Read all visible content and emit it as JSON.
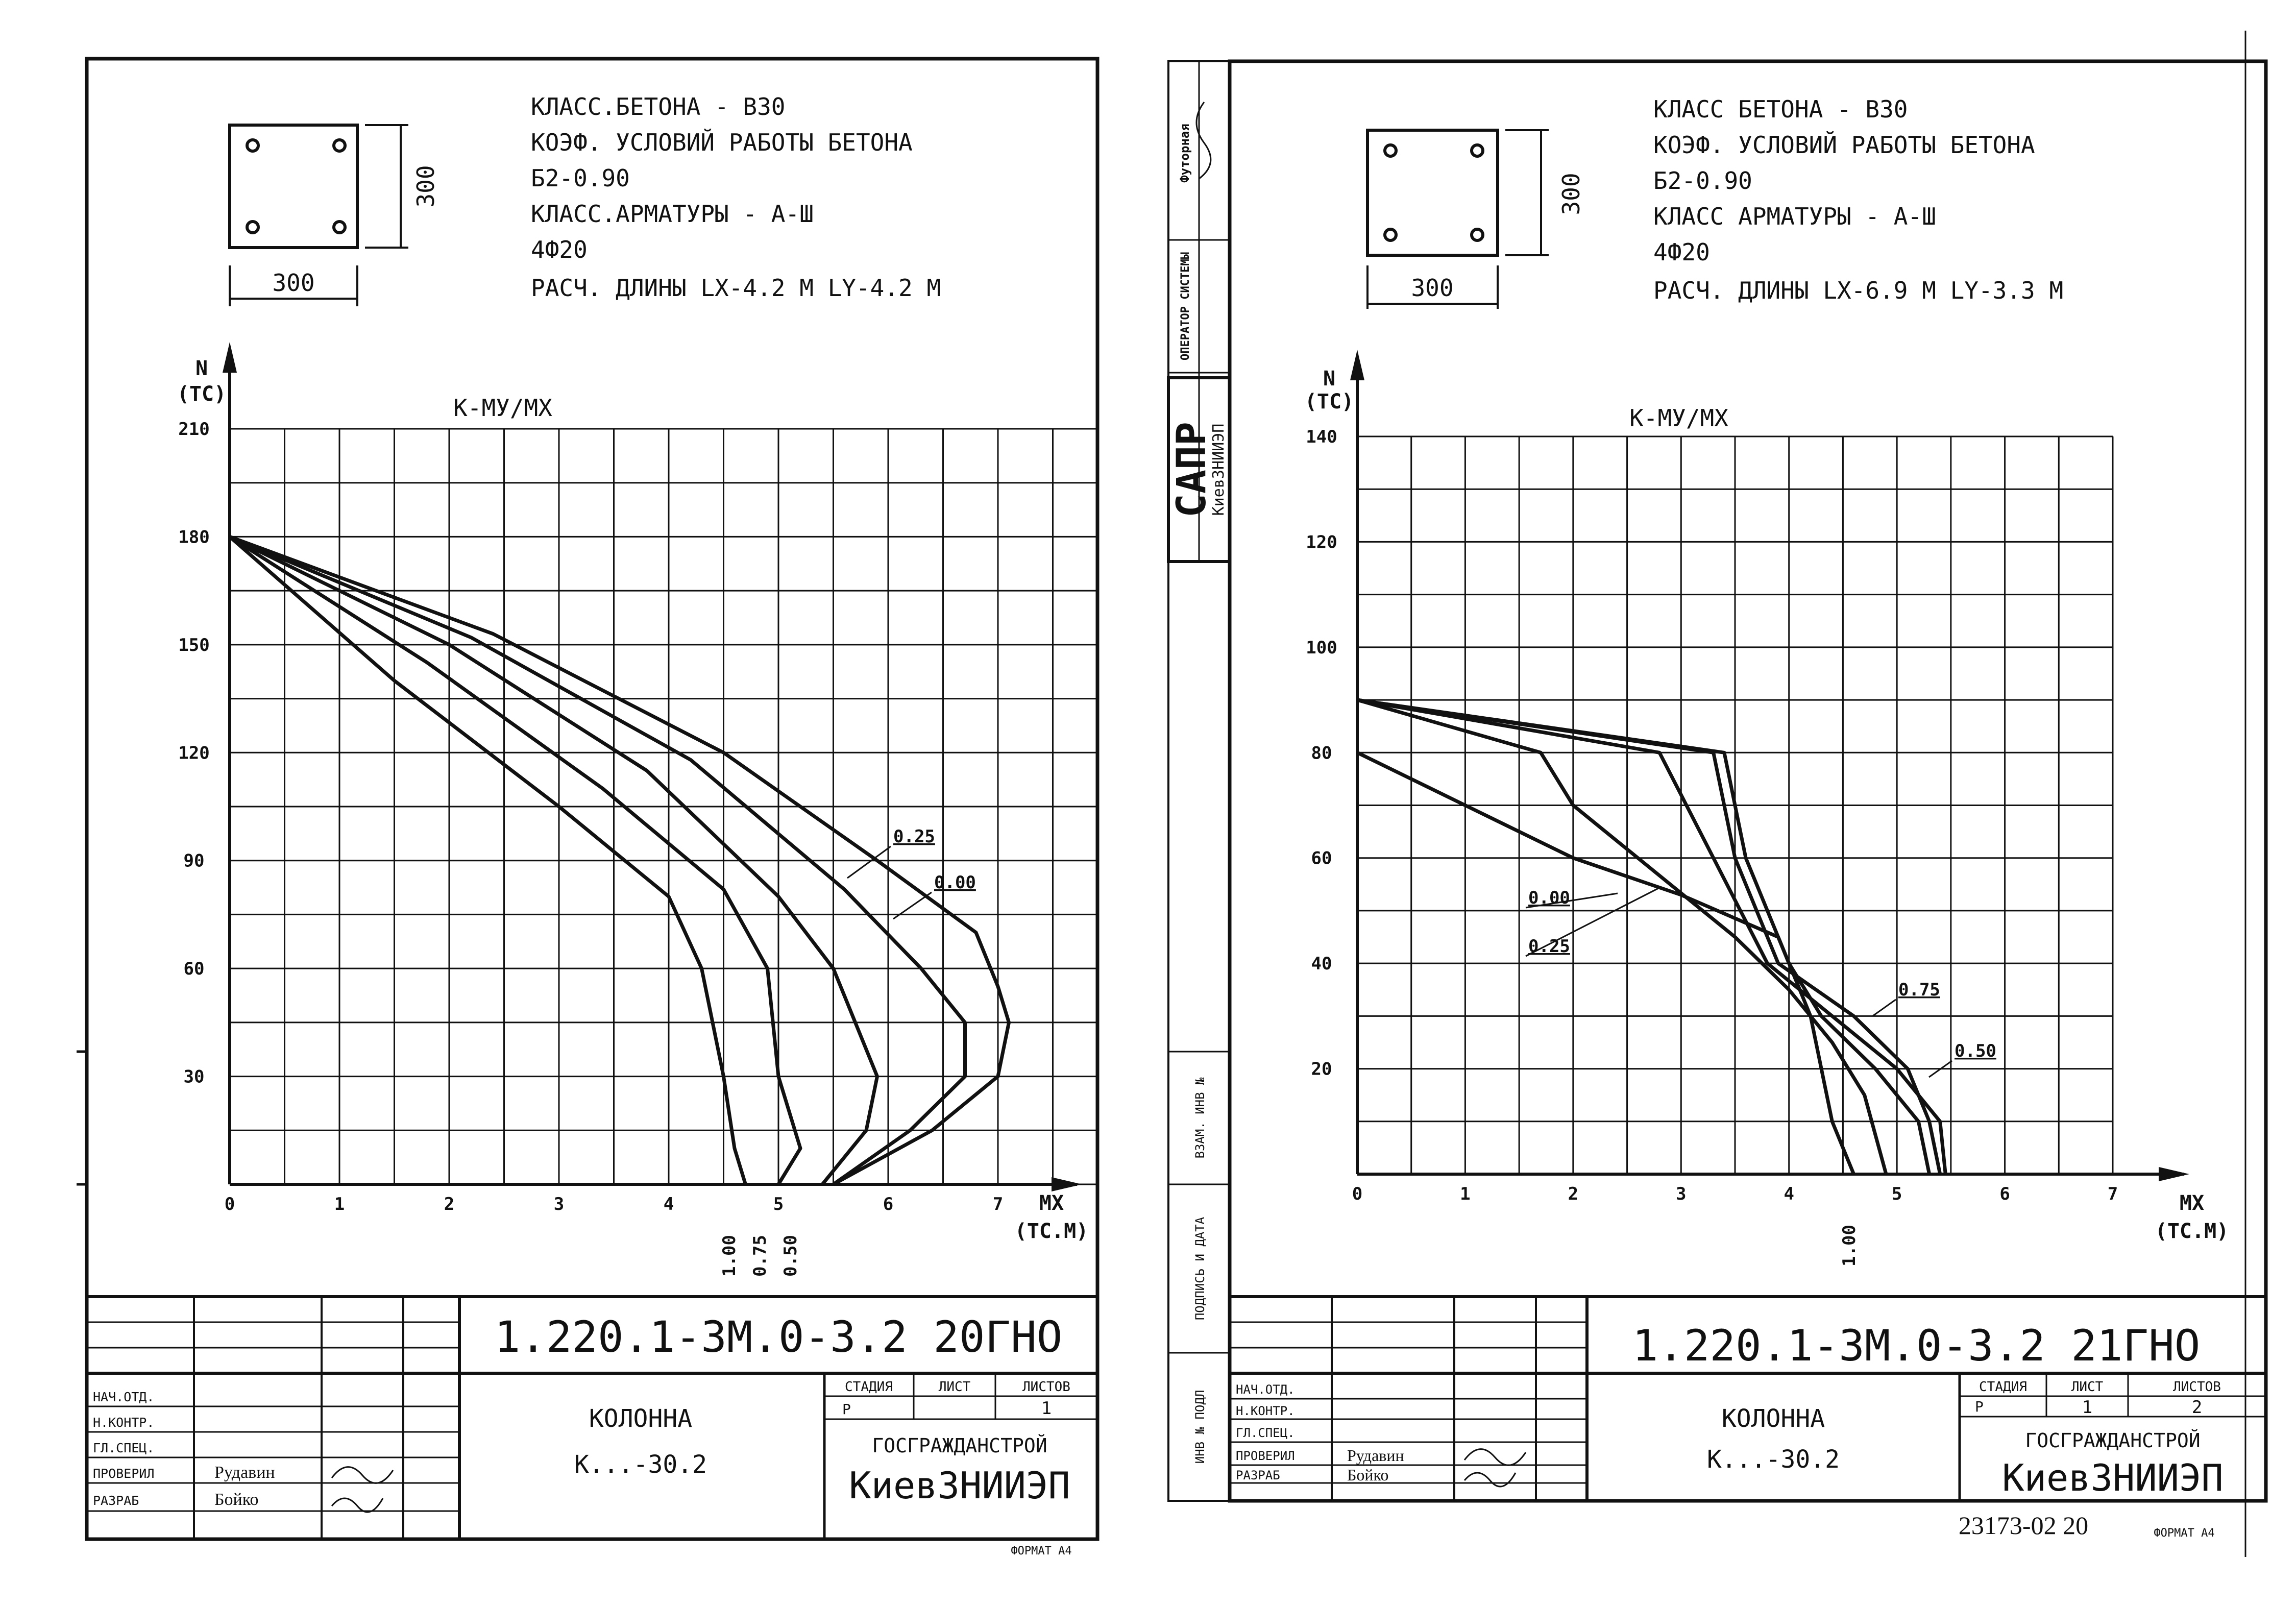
{
  "sheets": [
    {
      "params": [
        "КЛАСС.БЕТОНА - В30",
        "КОЭФ. УСЛОВИЙ РАБОТЫ БЕТОНА",
        "Б2-0.90",
        "КЛАСС.АРМАТУРЫ - А-Ш",
        "4Ф20",
        "РАСЧ. ДЛИНЫ  LX-4.2 М  LY-4.2 М"
      ],
      "section": {
        "width_label": "300",
        "height_label": "300"
      },
      "y_axis": {
        "label": "N",
        "unit": "(ТС)"
      },
      "x_axis": {
        "label": "МХ",
        "unit": "(ТС.М)"
      },
      "curve_family_label": "К-МУ/МХ",
      "title_block": {
        "code": "1.220.1-3М.0-3.2 20ГНО",
        "name": "КОЛОННА",
        "mark": "К...-30.2",
        "stage_header": "СТАДИЯ",
        "sheet_header": "ЛИСТ",
        "sheets_header": "ЛИСТОВ",
        "stage": "Р",
        "sheet": "",
        "sheets": "1",
        "org1": "ГОСГРАЖДАНСТРОЙ",
        "org2": "КиевЗНИИЭП",
        "roles": [
          "НАЧ.ОТД.",
          "Н.КОНТР.",
          "ГЛ.СПЕЦ.",
          "ПРОВЕРИЛ",
          "РАЗРАБ"
        ],
        "names": [
          "",
          "",
          "",
          "Рудавин",
          "Бойко"
        ],
        "format": "ФОРМАТ А4",
        "inventory": ""
      }
    },
    {
      "params": [
        "КЛАСС БЕТОНА - В30",
        "КОЭФ. УСЛОВИЙ РАБОТЫ БЕТОНА",
        "Б2-0.90",
        "КЛАСС АРМАТУРЫ - А-Ш",
        "4Ф20",
        "РАСЧ. ДЛИНЫ  LX-6.9 М  LY-3.3 М"
      ],
      "section": {
        "width_label": "300",
        "height_label": "300"
      },
      "y_axis": {
        "label": "N",
        "unit": "(ТС)"
      },
      "x_axis": {
        "label": "МХ",
        "unit": "(ТС.М)"
      },
      "curve_family_label": "К-МУ/МХ",
      "title_block": {
        "code": "1.220.1-3М.0-3.2 21ГНО",
        "name": "КОЛОННА",
        "mark": "К...-30.2",
        "stage_header": "СТАДИЯ",
        "sheet_header": "ЛИСТ",
        "sheets_header": "ЛИСТОВ",
        "stage": "Р",
        "sheet": "1",
        "sheets": "2",
        "org1": "ГОСГРАЖДАНСТРОЙ",
        "org2": "КиевЗНИИЭП",
        "roles": [
          "НАЧ.ОТД.",
          "Н.КОНТР.",
          "ГЛ.СПЕЦ.",
          "ПРОВЕРИЛ",
          "РАЗРАБ"
        ],
        "names": [
          "",
          "",
          "",
          "Рудавин",
          "Бойко"
        ],
        "format": "ФОРМАТ А4",
        "inventory": "23173-02 20"
      },
      "side_stamp": {
        "labels": [
          "Футорная",
          "ОПЕРАТОР СИСТЕМЫ",
          "САПР",
          "КиевЗНИИЭП",
          "ВЗАМ. ИНВ №",
          "ПОДПИСЬ И ДАТА",
          "ИНВ № ПОДЛ"
        ]
      }
    }
  ],
  "chart_data": [
    {
      "type": "line",
      "xlabel": "МХ (ТС.М)",
      "ylabel": "N (ТС)",
      "xlim": [
        0,
        8
      ],
      "ylim": [
        0,
        210
      ],
      "x_ticks": [
        0,
        1,
        2,
        3,
        4,
        5,
        6,
        7
      ],
      "y_ticks": [
        30,
        60,
        90,
        120,
        150,
        180,
        210
      ],
      "grid": true,
      "series": [
        {
          "name": "1.00",
          "points": [
            [
              0,
              180
            ],
            [
              1.5,
              140
            ],
            [
              3,
              105
            ],
            [
              4,
              80
            ],
            [
              4.3,
              60
            ],
            [
              4.5,
              30
            ],
            [
              4.6,
              10
            ],
            [
              4.7,
              0
            ]
          ]
        },
        {
          "name": "0.75",
          "points": [
            [
              0,
              180
            ],
            [
              1.8,
              145
            ],
            [
              3.4,
              110
            ],
            [
              4.5,
              82
            ],
            [
              4.9,
              60
            ],
            [
              5.0,
              30
            ],
            [
              5.2,
              10
            ],
            [
              5.0,
              0
            ]
          ]
        },
        {
          "name": "0.50",
          "points": [
            [
              0,
              180
            ],
            [
              2.0,
              150
            ],
            [
              3.8,
              115
            ],
            [
              5.0,
              80
            ],
            [
              5.5,
              60
            ],
            [
              5.9,
              30
            ],
            [
              5.8,
              15
            ],
            [
              5.4,
              0
            ]
          ]
        },
        {
          "name": "0.25",
          "points": [
            [
              0,
              180
            ],
            [
              2.2,
              152
            ],
            [
              4.2,
              118
            ],
            [
              5.6,
              82
            ],
            [
              6.3,
              60
            ],
            [
              6.7,
              45
            ],
            [
              6.7,
              30
            ],
            [
              6.2,
              15
            ],
            [
              5.5,
              0
            ]
          ]
        },
        {
          "name": "0.00",
          "points": [
            [
              0,
              180
            ],
            [
              2.4,
              153
            ],
            [
              4.5,
              120
            ],
            [
              5.9,
              90
            ],
            [
              6.8,
              70
            ],
            [
              7.0,
              55
            ],
            [
              7.1,
              45
            ],
            [
              7.0,
              30
            ],
            [
              6.4,
              15
            ],
            [
              5.5,
              0
            ]
          ]
        }
      ],
      "curve_labels": [
        {
          "text": "0.25",
          "position": "upper-right"
        },
        {
          "text": "0.00",
          "position": "upper-right"
        },
        {
          "text": "1.00",
          "position": "below-axis"
        },
        {
          "text": "0.75",
          "position": "below-axis"
        },
        {
          "text": "0.50",
          "position": "below-axis"
        }
      ]
    },
    {
      "type": "line",
      "xlabel": "МХ (ТС.М)",
      "ylabel": "N (ТС)",
      "xlim": [
        0,
        7
      ],
      "ylim": [
        0,
        140
      ],
      "x_ticks": [
        0,
        1,
        2,
        3,
        4,
        5,
        6,
        7
      ],
      "y_ticks": [
        20,
        40,
        60,
        80,
        100,
        120,
        140
      ],
      "grid": true,
      "series": [
        {
          "name": "0.00",
          "points": [
            [
              0,
              90
            ],
            [
              3.4,
              80
            ],
            [
              3.6,
              60
            ],
            [
              4.0,
              40
            ],
            [
              4.3,
              30
            ],
            [
              4.8,
              20
            ],
            [
              5.2,
              10
            ],
            [
              5.3,
              0
            ]
          ]
        },
        {
          "name": "0.25",
          "points": [
            [
              0,
              90
            ],
            [
              1.7,
              80
            ],
            [
              2.0,
              70
            ],
            [
              2.9,
              55
            ],
            [
              3.5,
              45
            ],
            [
              4.0,
              35
            ],
            [
              4.4,
              25
            ],
            [
              4.7,
              15
            ],
            [
              4.9,
              0
            ]
          ]
        },
        {
          "name": "0.50",
          "points": [
            [
              0,
              90
            ],
            [
              2.8,
              80
            ],
            [
              3.3,
              60
            ],
            [
              3.8,
              40
            ],
            [
              4.4,
              30
            ],
            [
              5.0,
              20
            ],
            [
              5.4,
              10
            ],
            [
              5.45,
              0
            ]
          ]
        },
        {
          "name": "0.75",
          "points": [
            [
              0,
              90
            ],
            [
              3.3,
              80
            ],
            [
              3.5,
              60
            ],
            [
              3.9,
              40
            ],
            [
              4.6,
              30
            ],
            [
              5.1,
              20
            ],
            [
              5.3,
              10
            ],
            [
              5.4,
              0
            ]
          ]
        },
        {
          "name": "1.00",
          "points": [
            [
              0,
              80
            ],
            [
              1.0,
              70
            ],
            [
              2.0,
              60
            ],
            [
              3.0,
              53
            ],
            [
              3.9,
              45
            ],
            [
              4.2,
              30
            ],
            [
              4.4,
              10
            ],
            [
              4.6,
              0
            ]
          ]
        }
      ],
      "curve_labels": [
        {
          "text": "0.00",
          "position": "left"
        },
        {
          "text": "0.25",
          "position": "left"
        },
        {
          "text": "0.75",
          "position": "right"
        },
        {
          "text": "0.50",
          "position": "right"
        },
        {
          "text": "1.00",
          "position": "below-axis"
        }
      ]
    }
  ]
}
